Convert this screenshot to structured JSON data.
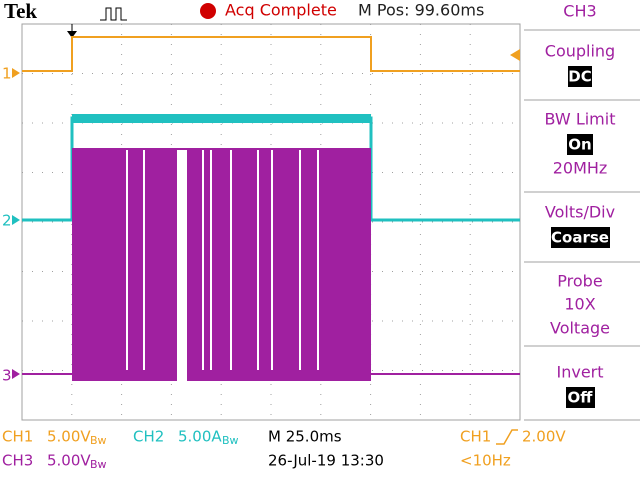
{
  "header": {
    "brand": "Tek",
    "status": "Acq Complete",
    "position": "M Pos: 99.60ms"
  },
  "channel_markers": [
    "1",
    "2",
    "3"
  ],
  "menu": {
    "title": "CH3",
    "coupling": {
      "label": "Coupling",
      "value": "DC"
    },
    "bw_limit": {
      "label": "BW Limit",
      "value": "On",
      "detail": "20MHz"
    },
    "volts_div": {
      "label": "Volts/Div",
      "value": "Coarse"
    },
    "probe": {
      "label": "Probe",
      "value": "10X",
      "detail": "Voltage"
    },
    "invert": {
      "label": "Invert",
      "value": "Off"
    }
  },
  "footer": {
    "ch1": {
      "name": "CH1",
      "scale": "5.00V",
      "bw": "Bw"
    },
    "ch2": {
      "name": "CH2",
      "scale": "5.00A",
      "bw": "Bw"
    },
    "ch3": {
      "name": "CH3",
      "scale": "5.00V",
      "bw": "Bw"
    },
    "timebase": "M 25.0ms",
    "date": "26-Jul-19 13:30",
    "trigger": {
      "source": "CH1",
      "level": "2.00V",
      "frequency": "<10Hz"
    }
  }
}
